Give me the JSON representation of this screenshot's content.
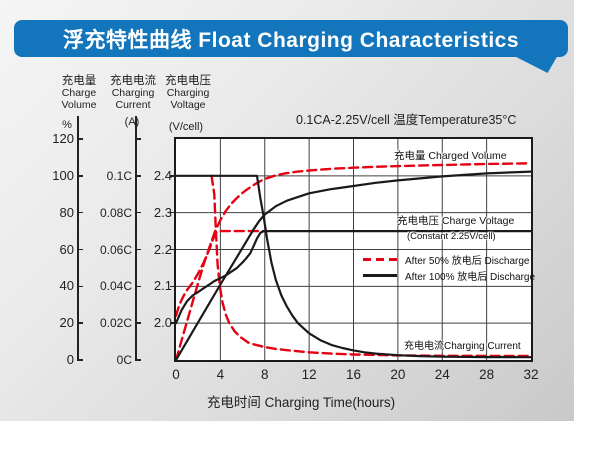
{
  "title": "浮充特性曲线 Float Charging Characteristics",
  "condition_note": "0.1CA-2.25V/cell  温度Temperature35°C",
  "colors": {
    "banner_blue": "#1376bd",
    "curve_red": "#e60014",
    "curve_black": "#1a1a1a",
    "grid": "#404040"
  },
  "axes": {
    "volume": {
      "title_cn": "充电量",
      "title_en1": "Charge",
      "title_en2": "Volume",
      "unit": "%",
      "ticks": [
        "120",
        "100",
        "80",
        "60",
        "40",
        "20",
        "0"
      ]
    },
    "current": {
      "title_cn": "充电电流",
      "title_en1": "Charging",
      "title_en2": "Current",
      "unit": "(A)",
      "ticks": [
        "0.1C",
        "0.08C",
        "0.06C",
        "0.04C",
        "0.02C",
        "0C"
      ]
    },
    "voltage": {
      "title_cn": "充电电压",
      "title_en1": "Charging",
      "title_en2": "Voltage",
      "unit": "(V/cell)",
      "ticks": [
        "2.4",
        "2.3",
        "2.2",
        "2.1",
        "2.0"
      ]
    },
    "x": {
      "title": "充电时间 Charging Time(hours)",
      "ticks": [
        "0",
        "4",
        "8",
        "12",
        "16",
        "20",
        "24",
        "28",
        "32"
      ]
    }
  },
  "plot_labels": {
    "volume": "充电量 Charged Volume",
    "voltage_line1": "充电电压 Charge Voltage",
    "voltage_line2": "(Constant 2.25V/cell)",
    "current": "充电电流Charging Current"
  },
  "chart_data": {
    "type": "line",
    "title": "浮充特性曲线 Float Charging Characteristics",
    "xlabel": "充电时间 Charging Time(hours)",
    "x_range_hours": [
      0,
      32
    ],
    "x_gridline_step_hours": 4,
    "y_scales": {
      "percent": {
        "label": "充电量 Charge Volume (%)",
        "range": [
          0,
          120
        ]
      },
      "c_rate": {
        "label": "充电电流 Charging Current (A)",
        "range": [
          0,
          0.12
        ]
      },
      "volt": {
        "label": "充电电压 Charging Voltage (V/cell)",
        "range": [
          1.9,
          2.5
        ]
      }
    },
    "legend": [
      {
        "style": "dashed-red",
        "label": "After 50%  放电后 Discharge"
      },
      {
        "style": "solid-black",
        "label": "After 100%  放电后 Discharge"
      }
    ],
    "series": [
      {
        "name": "charged-volume-after-50pct-discharge",
        "scale": "percent",
        "color": "#e60014",
        "dash": "9 5",
        "width": 2.4,
        "points": [
          [
            0,
            0
          ],
          [
            0.5,
            10.5
          ],
          [
            1,
            21
          ],
          [
            1.5,
            31.5
          ],
          [
            2,
            42
          ],
          [
            2.5,
            52
          ],
          [
            3,
            61
          ],
          [
            3.5,
            69.5
          ],
          [
            4,
            76
          ],
          [
            4.5,
            81
          ],
          [
            5,
            85
          ],
          [
            5.5,
            88
          ],
          [
            6,
            90.8
          ],
          [
            6.5,
            93
          ],
          [
            7,
            95
          ],
          [
            7.5,
            96.8
          ],
          [
            8,
            98.3
          ],
          [
            9,
            100.3
          ],
          [
            10,
            101.5
          ],
          [
            11,
            102.3
          ],
          [
            12,
            102.9
          ],
          [
            14,
            103.8
          ],
          [
            16,
            104.4
          ],
          [
            18,
            104.9
          ],
          [
            20,
            105.3
          ],
          [
            24,
            105.9
          ],
          [
            28,
            106.4
          ],
          [
            32,
            106.8
          ]
        ]
      },
      {
        "name": "charge-voltage-after-50pct-discharge",
        "scale": "volt",
        "color": "#e60014",
        "dash": "9 5",
        "width": 2.4,
        "points": [
          [
            0,
            2.02
          ],
          [
            0.3,
            2.05
          ],
          [
            0.7,
            2.075
          ],
          [
            1,
            2.09
          ],
          [
            1.5,
            2.11
          ],
          [
            2,
            2.135
          ],
          [
            2.5,
            2.165
          ],
          [
            3,
            2.2
          ],
          [
            3.3,
            2.225
          ],
          [
            3.6,
            2.245
          ],
          [
            3.8,
            2.25
          ],
          [
            8,
            2.25
          ]
        ]
      },
      {
        "name": "charging-current-after-50pct-discharge",
        "scale": "c_rate",
        "color": "#e60014",
        "dash": "9 5",
        "width": 2.4,
        "points": [
          [
            3.2,
            0.1
          ],
          [
            3.45,
            0.09
          ],
          [
            3.6,
            0.07
          ],
          [
            3.75,
            0.052
          ],
          [
            3.95,
            0.04
          ],
          [
            4.2,
            0.031
          ],
          [
            4.5,
            0.0245
          ],
          [
            4.8,
            0.02
          ],
          [
            5.3,
            0.0155
          ],
          [
            5.8,
            0.0125
          ],
          [
            6.5,
            0.0095
          ],
          [
            7,
            0.0085
          ],
          [
            8,
            0.007
          ],
          [
            9,
            0.006
          ],
          [
            10,
            0.0053
          ],
          [
            12,
            0.0042
          ],
          [
            14,
            0.0035
          ],
          [
            16,
            0.003
          ],
          [
            20,
            0.0025
          ],
          [
            24,
            0.0023
          ],
          [
            28,
            0.0022
          ],
          [
            32,
            0.0022
          ]
        ]
      },
      {
        "name": "charged-volume-after-100pct-discharge",
        "scale": "percent",
        "color": "#1a1a1a",
        "dash": null,
        "width": 2.2,
        "points": [
          [
            0,
            0
          ],
          [
            2,
            20.5
          ],
          [
            4,
            41
          ],
          [
            6,
            61
          ],
          [
            7,
            71
          ],
          [
            7.5,
            75.5
          ],
          [
            8,
            79
          ],
          [
            9,
            83.5
          ],
          [
            10,
            86.5
          ],
          [
            12,
            90.5
          ],
          [
            14,
            92.8
          ],
          [
            16,
            94.5
          ],
          [
            18,
            96.2
          ],
          [
            20,
            97.5
          ],
          [
            24,
            99.7
          ],
          [
            28,
            101.3
          ],
          [
            32,
            102.3
          ]
        ]
      },
      {
        "name": "charge-voltage-after-100pct-discharge",
        "scale": "volt",
        "color": "#1a1a1a",
        "dash": null,
        "width": 2.2,
        "points": [
          [
            0,
            2.0
          ],
          [
            0.5,
            2.035
          ],
          [
            1,
            2.06
          ],
          [
            1.5,
            2.075
          ],
          [
            2,
            2.085
          ],
          [
            2.5,
            2.095
          ],
          [
            3,
            2.105
          ],
          [
            3.5,
            2.115
          ],
          [
            4,
            2.122
          ],
          [
            4.5,
            2.13
          ],
          [
            5,
            2.14
          ],
          [
            5.5,
            2.15
          ],
          [
            6,
            2.165
          ],
          [
            6.3,
            2.175
          ],
          [
            6.7,
            2.19
          ],
          [
            7,
            2.21
          ],
          [
            7.3,
            2.23
          ],
          [
            7.6,
            2.245
          ],
          [
            7.9,
            2.25
          ],
          [
            32,
            2.25
          ]
        ]
      },
      {
        "name": "charging-current-after-100pct-discharge",
        "scale": "c_rate",
        "color": "#1a1a1a",
        "dash": null,
        "width": 2.2,
        "points": [
          [
            0,
            0.1
          ],
          [
            7.3,
            0.1
          ],
          [
            7.6,
            0.088
          ],
          [
            7.9,
            0.078
          ],
          [
            8.2,
            0.066
          ],
          [
            8.6,
            0.053
          ],
          [
            9,
            0.0435
          ],
          [
            9.5,
            0.035
          ],
          [
            10,
            0.029
          ],
          [
            10.5,
            0.024
          ],
          [
            11,
            0.02
          ],
          [
            12,
            0.0145
          ],
          [
            13,
            0.0108
          ],
          [
            14,
            0.0082
          ],
          [
            15,
            0.0065
          ],
          [
            16,
            0.0052
          ],
          [
            17,
            0.0042
          ],
          [
            18,
            0.0035
          ],
          [
            20,
            0.0026
          ],
          [
            22,
            0.0021
          ],
          [
            24,
            0.0018
          ],
          [
            28,
            0.0016
          ],
          [
            32,
            0.0015
          ]
        ]
      }
    ]
  }
}
